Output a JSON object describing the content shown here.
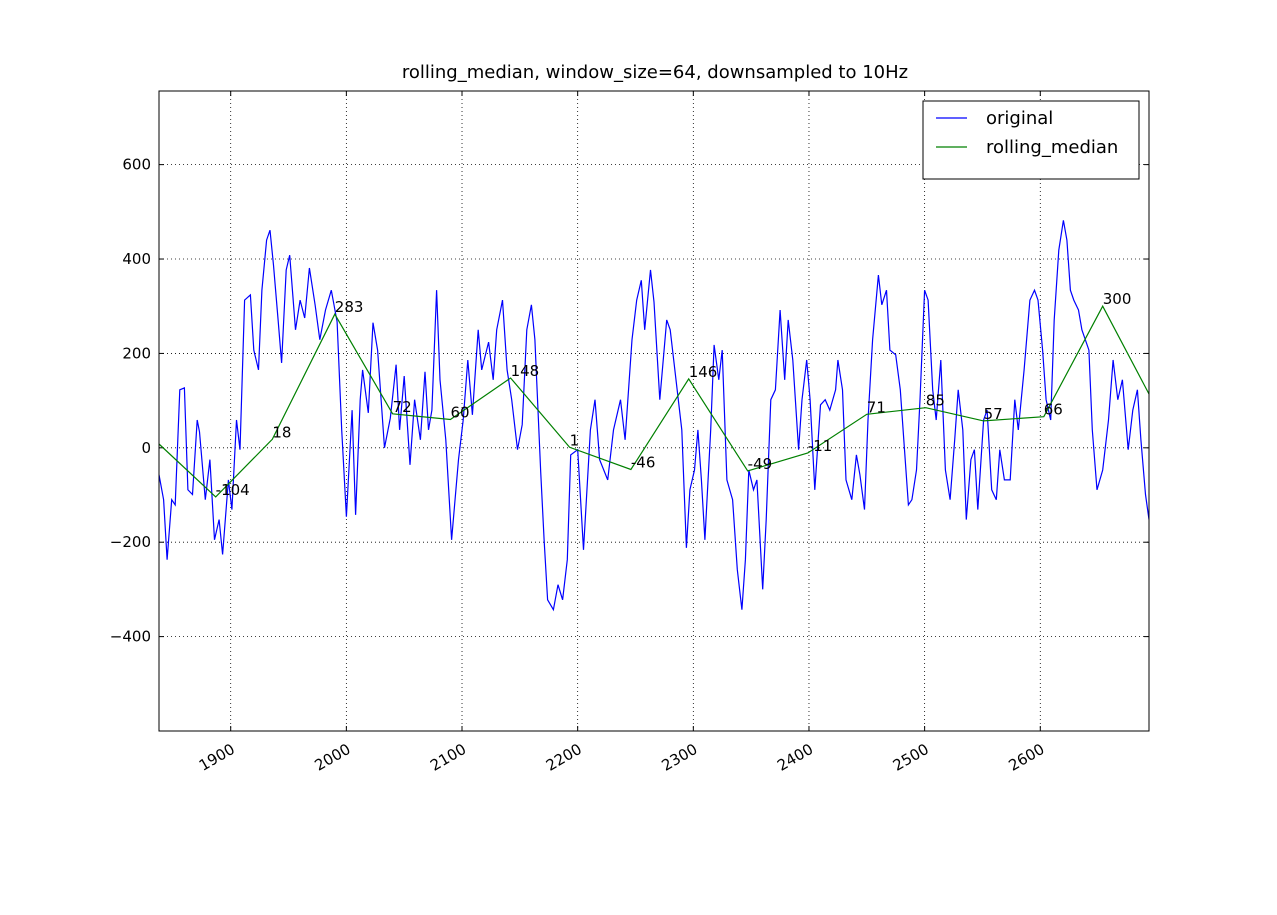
{
  "chart_data": {
    "type": "line",
    "title": "rolling_median, window_size=64, downsampled to 10Hz",
    "xlim": [
      1838,
      2694
    ],
    "ylim": [
      -600,
      756
    ],
    "xticks": [
      1900,
      2000,
      2100,
      2200,
      2300,
      2400,
      2500,
      2600
    ],
    "yticks": [
      {
        "value": -400,
        "label": "−400"
      },
      {
        "value": -200,
        "label": "−200"
      },
      0,
      200,
      400,
      600
    ],
    "grid": true,
    "legend": "upper right",
    "series": [
      {
        "name": "original",
        "color": "#0000ff",
        "x": [
          1838,
          1842,
          1845,
          1849,
          1852,
          1856,
          1860,
          1863,
          1867,
          1871,
          1873,
          1878,
          1882,
          1886,
          1890,
          1893,
          1898,
          1901,
          1905,
          1908,
          1912,
          1917,
          1920,
          1924,
          1927,
          1931,
          1934,
          1937,
          1941,
          1944,
          1948,
          1951,
          1956,
          1960,
          1964,
          1968,
          1973,
          1977,
          1982,
          1987,
          1992,
          1996,
          2000,
          2005,
          2008,
          2012,
          2014,
          2019,
          2023,
          2027,
          2033,
          2038,
          2043,
          2046,
          2050,
          2055,
          2059,
          2064,
          2068,
          2071,
          2074,
          2078,
          2081,
          2086,
          2091,
          2097,
          2101,
          2105,
          2109,
          2114,
          2117,
          2123,
          2127,
          2130,
          2135,
          2139,
          2143,
          2148,
          2152,
          2156,
          2160,
          2163,
          2168,
          2171,
          2174,
          2179,
          2183,
          2187,
          2191,
          2194,
          2200,
          2205,
          2211,
          2215,
          2219,
          2226,
          2231,
          2237,
          2241,
          2247,
          2251,
          2255,
          2258,
          2263,
          2266,
          2271,
          2277,
          2280,
          2285,
          2290,
          2294,
          2297,
          2301,
          2304,
          2307,
          2310,
          2315,
          2318,
          2322,
          2325,
          2329,
          2334,
          2338,
          2342,
          2345,
          2348,
          2352,
          2355,
          2360,
          2363,
          2367,
          2371,
          2375,
          2379,
          2382,
          2386,
          2391,
          2394,
          2398,
          2401,
          2405,
          2410,
          2414,
          2418,
          2423,
          2425,
          2429,
          2432,
          2437,
          2441,
          2444,
          2448,
          2451,
          2455,
          2460,
          2463,
          2467,
          2470,
          2475,
          2479,
          2482,
          2486,
          2489,
          2493,
          2496,
          2500,
          2503,
          2507,
          2510,
          2514,
          2518,
          2522,
          2526,
          2529,
          2533,
          2536,
          2540,
          2543,
          2546,
          2551,
          2554,
          2558,
          2562,
          2565,
          2569,
          2574,
          2578,
          2581,
          2586,
          2591,
          2595,
          2598,
          2602,
          2605,
          2609,
          2612,
          2616,
          2620,
          2623,
          2626,
          2629,
          2633,
          2636,
          2642,
          2645,
          2649,
          2654,
          2659,
          2663,
          2667,
          2671,
          2676,
          2680,
          2684,
          2687,
          2691,
          2694
        ],
        "values": [
          -57,
          -110,
          -237,
          -110,
          -121,
          123,
          127,
          -89,
          -99,
          59,
          34,
          -110,
          -25,
          -195,
          -152,
          -226,
          -68,
          -131,
          59,
          -4,
          313,
          324,
          207,
          165,
          334,
          440,
          461,
          387,
          271,
          180,
          377,
          408,
          250,
          313,
          275,
          381,
          303,
          229,
          292,
          334,
          267,
          38,
          -146,
          80,
          -142,
          102,
          165,
          74,
          265,
          207,
          0,
          63,
          176,
          38,
          152,
          -36,
          102,
          17,
          161,
          38,
          80,
          334,
          144,
          17,
          -195,
          -25,
          59,
          186,
          70,
          250,
          165,
          224,
          144,
          250,
          313,
          165,
          102,
          -4,
          49,
          250,
          303,
          229,
          -51,
          -195,
          -322,
          -343,
          -290,
          -322,
          -237,
          -15,
          -4,
          -216,
          38,
          102,
          -25,
          -68,
          38,
          102,
          17,
          229,
          313,
          355,
          250,
          377,
          309,
          102,
          271,
          250,
          144,
          38,
          -212,
          -89,
          -47,
          38,
          -68,
          -195,
          38,
          218,
          144,
          207,
          -68,
          -110,
          -258,
          -343,
          -237,
          -47,
          -89,
          -68,
          -300,
          -152,
          102,
          123,
          292,
          144,
          271,
          186,
          -4,
          102,
          186,
          102,
          -89,
          91,
          102,
          80,
          123,
          186,
          123,
          -68,
          -110,
          -15,
          -57,
          -131,
          59,
          229,
          366,
          303,
          334,
          207,
          197,
          123,
          17,
          -121,
          -110,
          -47,
          102,
          334,
          313,
          123,
          59,
          186,
          -47,
          -110,
          17,
          123,
          38,
          -152,
          -25,
          -4,
          -131,
          59,
          80,
          -89,
          -110,
          -4,
          -68,
          -68,
          102,
          38,
          165,
          313,
          334,
          313,
          207,
          102,
          59,
          271,
          419,
          482,
          440,
          334,
          313,
          292,
          250,
          207,
          38,
          -89,
          -47,
          59,
          186,
          102,
          144,
          -4,
          80,
          123,
          17,
          -99,
          -152
        ]
      },
      {
        "name": "rolling_median",
        "color": "#008000",
        "x": [
          1838,
          1887,
          1936,
          1990,
          2040,
          2090,
          2142,
          2193,
          2246,
          2296,
          2347,
          2399,
          2450,
          2501,
          2551,
          2603,
          2654,
          2694
        ],
        "values": [
          8,
          -104,
          18,
          283,
          72,
          60,
          148,
          1,
          -46,
          146,
          -49,
          -11,
          71,
          85,
          57,
          66,
          300,
          114
        ],
        "value_labels": [
          null,
          "-104",
          "18",
          "283",
          "72",
          "60",
          "148",
          "1",
          "-46",
          "146",
          "-49",
          "-11",
          "71",
          "85",
          "57",
          "66",
          "300",
          null
        ]
      }
    ]
  }
}
